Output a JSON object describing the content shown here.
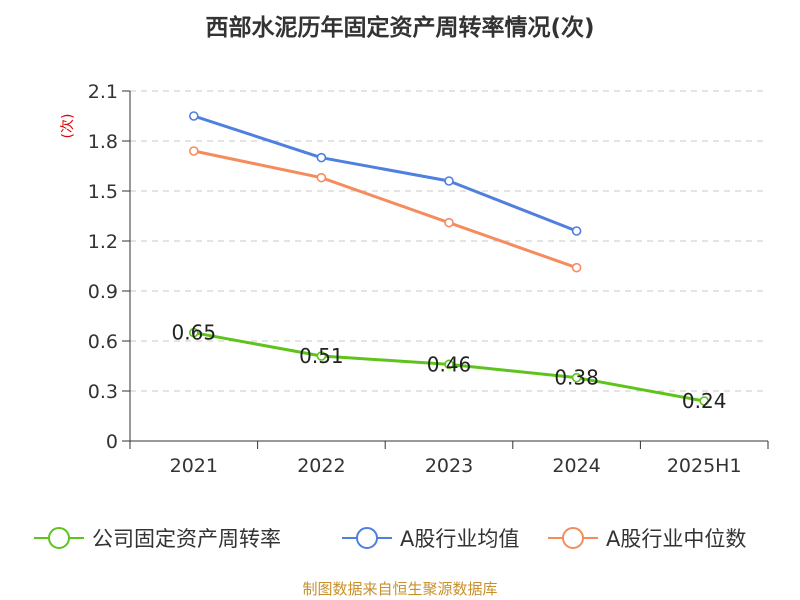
{
  "title": "西部水泥历年固定资产周转率情况(次)",
  "source": "制图数据来自恒生聚源数据库",
  "colors": {
    "company": "#5ec41c",
    "industry_avg": "#4f7fdf",
    "industry_median": "#f58c5e",
    "unit": "#e00000",
    "source": "#c8902c"
  },
  "chart_data": {
    "type": "line",
    "title": "西部水泥历年固定资产周转率情况(次)",
    "ylabel": "(次)",
    "xlabel": "",
    "categories": [
      "2021",
      "2022",
      "2023",
      "2024",
      "2025H1"
    ],
    "y_ticks": [
      "0",
      "0.3",
      "0.6",
      "0.9",
      "1.2",
      "1.5",
      "1.8",
      "2.1"
    ],
    "ylim": [
      0,
      2.1
    ],
    "grid": true,
    "legend_position": "bottom",
    "series": [
      {
        "name": "公司固定资产周转率",
        "color": "#5ec41c",
        "values": [
          0.65,
          0.51,
          0.46,
          0.38,
          0.24
        ],
        "labels": [
          "0.65",
          "0.51",
          "0.46",
          "0.38",
          "0.24"
        ]
      },
      {
        "name": "A股行业均值",
        "color": "#4f7fdf",
        "values": [
          1.95,
          1.7,
          1.56,
          1.26,
          null
        ]
      },
      {
        "name": "A股行业中位数",
        "color": "#f58c5e",
        "values": [
          1.74,
          1.58,
          1.31,
          1.04,
          null
        ]
      }
    ]
  }
}
